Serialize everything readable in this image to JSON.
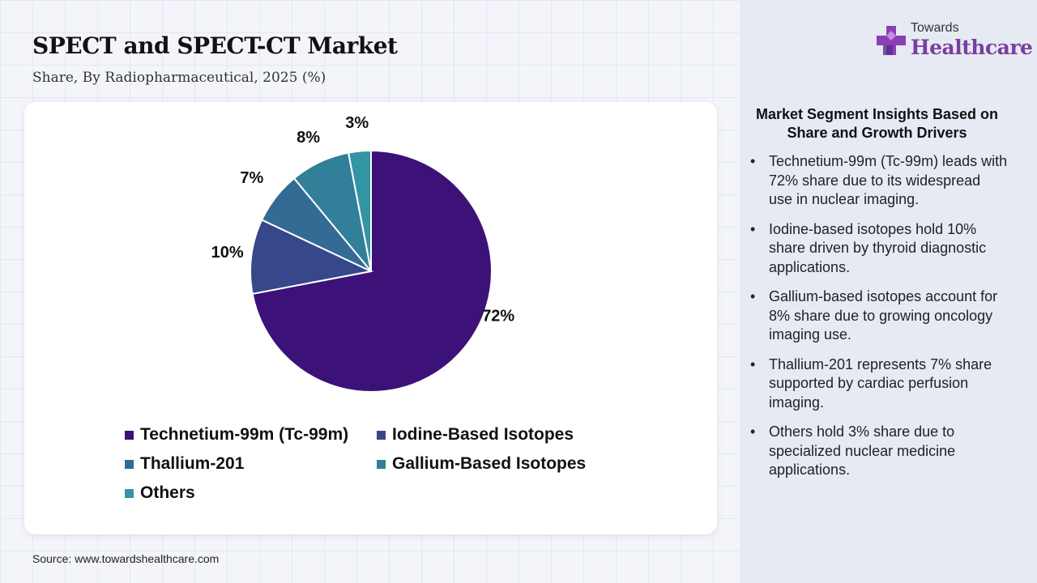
{
  "header": {
    "title": "SPECT and SPECT-CT Market",
    "subtitle": "Share, By Radiopharmaceutical, 2025 (%)"
  },
  "logo": {
    "line1": "Towards",
    "line2": "Healthcare",
    "icon": "plus-cross-icon"
  },
  "chart_data": {
    "type": "pie",
    "categories": [
      "Technetium-99m (Tc-99m)",
      "Iodine-Based Isotopes",
      "Thallium-201",
      "Gallium-Based Isotopes",
      "Others"
    ],
    "values": [
      72,
      10,
      7,
      8,
      3
    ],
    "labels": [
      "72%",
      "10%",
      "7%",
      "8%",
      "3%"
    ],
    "colors": [
      "#3c1279",
      "#36478a",
      "#336b94",
      "#317f99",
      "#3395a4"
    ],
    "legend_position": "bottom",
    "legend_order": [
      0,
      1,
      2,
      3,
      4
    ]
  },
  "source": "Source: www.towardshealthcare.com",
  "insights": {
    "title": "Market Segment Insights Based on Share and Growth Drivers",
    "items": [
      "Technetium-99m (Tc-99m) leads with 72% share due to its widespread use in nuclear imaging.",
      "Iodine-based isotopes hold 10% share driven by thyroid diagnostic applications.",
      "Gallium-based isotopes account for 8% share due to growing oncology imaging use.",
      "Thallium-201 represents 7% share supported by cardiac perfusion imaging.",
      "Others hold 3% share due to specialized nuclear medicine applications."
    ]
  }
}
